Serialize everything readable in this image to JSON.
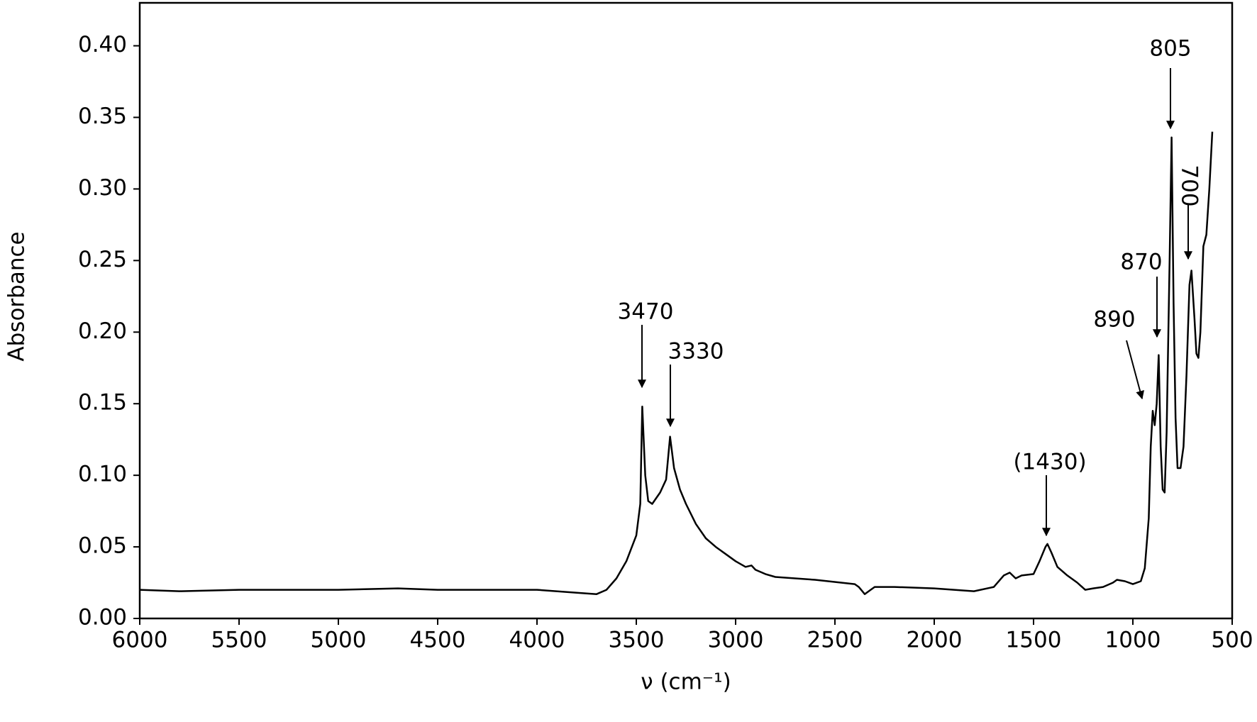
{
  "chart_data": {
    "type": "line",
    "x_label": "ν (cm⁻¹)",
    "y_label": "Absorbance",
    "xlim": [
      6000,
      500
    ],
    "ylim": [
      0,
      0.43
    ],
    "xticks": [
      6000,
      5500,
      5000,
      4500,
      4000,
      3500,
      3000,
      2500,
      2000,
      1500,
      1000,
      500
    ],
    "yticks": [
      {
        "value": 0,
        "label": "0.00"
      },
      0.05,
      {
        "value": 0.1,
        "label": "0.10"
      },
      0.15,
      {
        "value": 0.2,
        "label": "0.20"
      },
      0.25,
      {
        "value": 0.3,
        "label": "0.30"
      },
      0.35,
      {
        "value": 0.4,
        "label": "0.40"
      }
    ],
    "grid": false,
    "series": [
      {
        "color": "#000000",
        "x": [
          6000,
          5800,
          5500,
          5000,
          4700,
          4500,
          4000,
          3800,
          3700,
          3650,
          3600,
          3550,
          3500,
          3480,
          3470,
          3455,
          3440,
          3420,
          3380,
          3350,
          3330,
          3310,
          3280,
          3250,
          3200,
          3150,
          3100,
          3050,
          3000,
          2950,
          2920,
          2900,
          2850,
          2800,
          2600,
          2400,
          2380,
          2350,
          2320,
          2300,
          2200,
          2000,
          1800,
          1700,
          1650,
          1620,
          1590,
          1560,
          1500,
          1470,
          1440,
          1430,
          1410,
          1380,
          1330,
          1280,
          1240,
          1200,
          1150,
          1100,
          1080,
          1040,
          1000,
          960,
          940,
          920,
          910,
          900,
          890,
          880,
          870,
          860,
          850,
          840,
          830,
          815,
          805,
          795,
          785,
          775,
          760,
          745,
          730,
          715,
          705,
          690,
          680,
          670,
          660,
          645,
          630,
          615,
          600
        ],
        "values": [
          0.02,
          0.019,
          0.02,
          0.02,
          0.021,
          0.02,
          0.02,
          0.018,
          0.017,
          0.02,
          0.028,
          0.04,
          0.058,
          0.08,
          0.148,
          0.1,
          0.082,
          0.08,
          0.088,
          0.097,
          0.127,
          0.105,
          0.09,
          0.08,
          0.066,
          0.056,
          0.05,
          0.045,
          0.04,
          0.036,
          0.037,
          0.034,
          0.031,
          0.029,
          0.027,
          0.024,
          0.022,
          0.017,
          0.02,
          0.022,
          0.022,
          0.021,
          0.019,
          0.022,
          0.03,
          0.032,
          0.028,
          0.03,
          0.031,
          0.04,
          0.05,
          0.052,
          0.046,
          0.036,
          0.03,
          0.025,
          0.02,
          0.021,
          0.022,
          0.025,
          0.027,
          0.026,
          0.024,
          0.026,
          0.035,
          0.07,
          0.12,
          0.145,
          0.135,
          0.15,
          0.184,
          0.12,
          0.09,
          0.088,
          0.13,
          0.25,
          0.336,
          0.22,
          0.14,
          0.105,
          0.105,
          0.12,
          0.17,
          0.233,
          0.243,
          0.21,
          0.185,
          0.182,
          0.2,
          0.26,
          0.268,
          0.3,
          0.34
        ]
      }
    ],
    "annotations": [
      "3470",
      "3330",
      "(1430)",
      "890",
      "870",
      "805",
      "700"
    ]
  }
}
